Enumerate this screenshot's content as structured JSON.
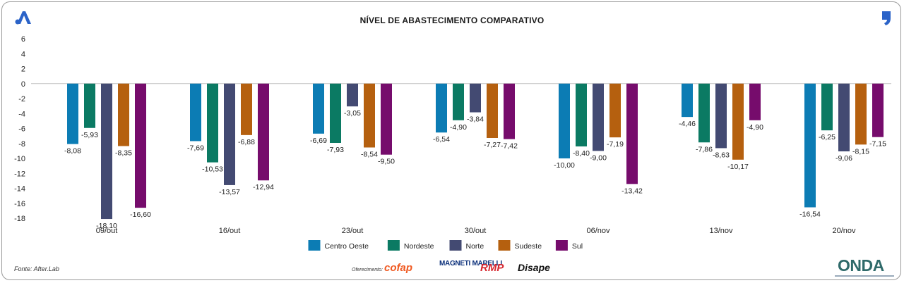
{
  "title": "NÍVEL DE ABASTECIMENTO COMPARATIVO",
  "source": "Fonte: After.Lab",
  "footer": {
    "oferecimento": "Oferecimento:",
    "sponsors": [
      "cofap",
      "MAGNETI MARELLI",
      "RMP",
      "Disape"
    ],
    "brand": "ONDA"
  },
  "colors": {
    "Centro Oeste": "#0c7cb4",
    "Nordeste": "#0b7a63",
    "Norte": "#434a72",
    "Sudeste": "#b5600f",
    "Sul": "#760c6c"
  },
  "chart_data": {
    "type": "bar",
    "title": "NÍVEL DE ABASTECIMENTO COMPARATIVO",
    "categories": [
      "09/out",
      "16/out",
      "23/out",
      "30/out",
      "06/nov",
      "13/nov",
      "20/nov"
    ],
    "series": [
      {
        "name": "Centro Oeste",
        "values": [
          -8.08,
          -7.69,
          -6.69,
          -6.54,
          -10.0,
          -4.46,
          -16.54
        ],
        "labels": [
          "-8,08",
          "-7,69",
          "-6,69",
          "-6,54",
          "-10,00",
          "-4,46",
          "-16,54"
        ]
      },
      {
        "name": "Nordeste",
        "values": [
          -5.93,
          -10.53,
          -7.93,
          -4.9,
          -8.4,
          -7.86,
          -6.25
        ],
        "labels": [
          "-5,93",
          "-10,53",
          "-7,93",
          "-4,90",
          "-8,40",
          "-7,86",
          "-6,25"
        ]
      },
      {
        "name": "Norte",
        "values": [
          -18.1,
          -13.57,
          -3.05,
          -3.84,
          -9.0,
          -8.63,
          -9.06
        ],
        "labels": [
          "-18,10",
          "-13,57",
          "-3,05",
          "-3,84",
          "-9,00",
          "-8,63",
          "-9,06"
        ]
      },
      {
        "name": "Sudeste",
        "values": [
          -8.35,
          -6.88,
          -8.54,
          -7.27,
          -7.19,
          -10.17,
          -8.15
        ],
        "labels": [
          "-8,35",
          "-6,88",
          "-8,54",
          "-7,27",
          "-7,19",
          "-10,17",
          "-8,15"
        ]
      },
      {
        "name": "Sul",
        "values": [
          -16.6,
          -12.94,
          -9.5,
          -7.42,
          -13.42,
          -4.9,
          -7.15
        ],
        "labels": [
          "-16,60",
          "-12,94",
          "-9,50",
          "-7,42",
          "-13,42",
          "-4,90",
          "-7,15"
        ]
      }
    ],
    "ylim": [
      -18,
      6
    ],
    "yticks": [
      6,
      4,
      2,
      0,
      -2,
      -4,
      -6,
      -8,
      -10,
      -12,
      -14,
      -16,
      -18
    ],
    "legend": "bottom-center",
    "grid": false
  }
}
